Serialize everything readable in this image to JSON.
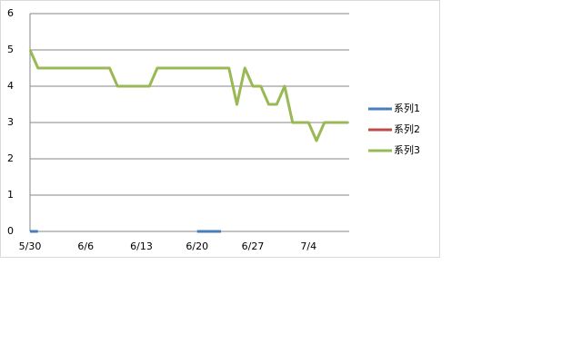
{
  "chart_data": {
    "type": "line",
    "categories": [
      "5/30",
      null,
      null,
      null,
      null,
      null,
      null,
      "6/6",
      null,
      null,
      null,
      null,
      null,
      null,
      "6/13",
      null,
      null,
      null,
      null,
      null,
      null,
      "6/20",
      null,
      null,
      null,
      null,
      null,
      null,
      "6/27",
      null,
      null,
      null,
      null,
      null,
      null,
      "7/4",
      null,
      null,
      null,
      null,
      null
    ],
    "series": [
      {
        "name": "系列1",
        "color": "#4a7ebb",
        "values": [
          0,
          0,
          null,
          null,
          null,
          null,
          null,
          null,
          null,
          null,
          null,
          null,
          null,
          null,
          null,
          null,
          null,
          null,
          null,
          null,
          null,
          0,
          0,
          0,
          0,
          null,
          null,
          null,
          null,
          null,
          null,
          null,
          null,
          null,
          null,
          null,
          null,
          null,
          null,
          null,
          null
        ]
      },
      {
        "name": "系列2",
        "color": "#be4b48",
        "values": [
          null,
          null,
          null,
          null,
          null,
          null,
          null,
          null,
          null,
          null,
          null,
          null,
          null,
          null,
          null,
          null,
          null,
          null,
          null,
          null,
          null,
          null,
          null,
          null,
          null,
          null,
          null,
          null,
          null,
          null,
          null,
          null,
          null,
          null,
          null,
          null,
          null,
          null,
          null,
          null,
          null
        ]
      },
      {
        "name": "系列3",
        "color": "#98b954",
        "values": [
          5,
          4.5,
          4.5,
          4.5,
          4.5,
          4.5,
          4.5,
          4.5,
          4.5,
          4.5,
          4.5,
          4,
          4,
          4,
          4,
          4,
          4.5,
          4.5,
          4.5,
          4.5,
          4.5,
          4.5,
          4.5,
          4.5,
          4.5,
          4.5,
          3.5,
          4.5,
          4,
          4,
          3.5,
          3.5,
          4,
          3,
          3,
          3,
          2.5,
          3,
          3,
          3,
          3
        ]
      }
    ],
    "ylim": [
      0,
      6
    ],
    "yticks": [
      0,
      1,
      2,
      3,
      4,
      5,
      6
    ],
    "grid": true,
    "legend": "right"
  }
}
